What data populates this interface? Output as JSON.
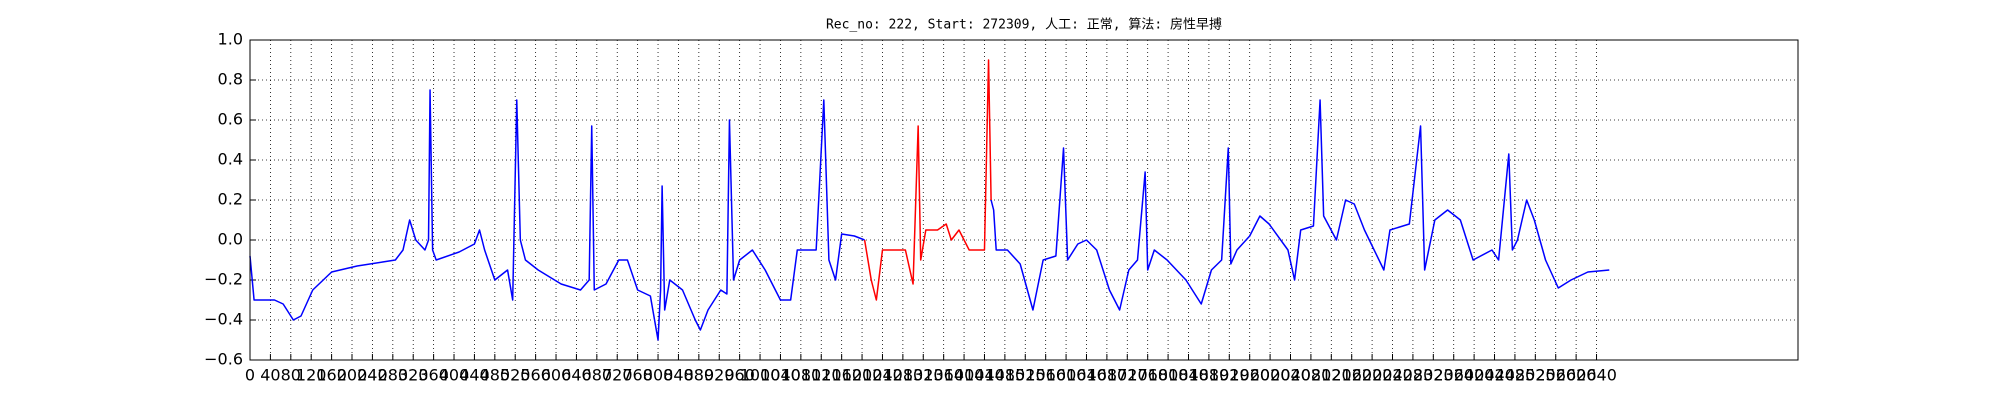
{
  "chart_data": {
    "type": "line",
    "title": "Rec_no: 222, Start: 272309, 人工: 正常, 算法: 房性早搏",
    "x": [
      0,
      8,
      48,
      65,
      85,
      100,
      123,
      160,
      210,
      260,
      285,
      300,
      313,
      325,
      343,
      350,
      353,
      358,
      365,
      410,
      440,
      450,
      460,
      480,
      505,
      515,
      523,
      530,
      540,
      565,
      610,
      648,
      665,
      670,
      675,
      698,
      723,
      740,
      760,
      785,
      800,
      805,
      808,
      813,
      823,
      848,
      873,
      883,
      898,
      923,
      935,
      940,
      948,
      960,
      985,
      1010,
      1040,
      1060,
      1073,
      1110,
      1125,
      1135,
      1148,
      1160,
      1185,
      1205,
      1218,
      1228,
      1240,
      1260,
      1285,
      1300,
      1310,
      1315,
      1325,
      1348,
      1365,
      1375,
      1390,
      1410,
      1430,
      1440,
      1448,
      1453,
      1458,
      1463,
      1485,
      1510,
      1535,
      1555,
      1580,
      1595,
      1603,
      1623,
      1640,
      1660,
      1685,
      1705,
      1723,
      1740,
      1755,
      1760,
      1773,
      1798,
      1835,
      1865,
      1885,
      1905,
      1918,
      1923,
      1935,
      1960,
      1980,
      1998,
      2035,
      2048,
      2060,
      2085,
      2098,
      2105,
      2130,
      2148,
      2165,
      2185,
      2223,
      2235,
      2273,
      2295,
      2303,
      2323,
      2348,
      2373,
      2398,
      2435,
      2448,
      2468,
      2475,
      2485,
      2503,
      2518,
      2540,
      2565,
      2590,
      2623,
      2665
    ],
    "series": [
      {
        "color": "#0000ff",
        "values": [
          -0.08,
          -0.3,
          -0.3,
          -0.32,
          -0.4,
          -0.38,
          -0.25,
          -0.16,
          -0.13,
          -0.11,
          -0.1,
          -0.05,
          0.1,
          0.0,
          -0.05,
          0.0,
          0.75,
          -0.05,
          -0.1,
          -0.06,
          -0.02,
          0.05,
          -0.05,
          -0.2,
          -0.15,
          -0.3,
          0.7,
          0.0,
          -0.1,
          -0.15,
          -0.22,
          -0.25,
          -0.2,
          0.57,
          -0.25,
          -0.22,
          -0.1,
          -0.1,
          -0.25,
          -0.28,
          -0.5,
          -0.25,
          0.27,
          -0.35,
          -0.2,
          -0.25,
          -0.4,
          -0.45,
          -0.35,
          -0.25,
          -0.27,
          0.6,
          -0.2,
          -0.1,
          -0.05,
          -0.15,
          -0.3,
          -0.3,
          -0.05,
          -0.05,
          0.7,
          -0.1,
          -0.2,
          0.03,
          0.02,
          0.0,
          null,
          null,
          null,
          null,
          null,
          null,
          null,
          null,
          null,
          null,
          null,
          null,
          null,
          null,
          null,
          null,
          null,
          0.2,
          0.15,
          -0.05,
          -0.05,
          -0.12,
          -0.35,
          -0.1,
          -0.08,
          0.46,
          -0.1,
          -0.02,
          0.0,
          -0.05,
          -0.25,
          -0.35,
          -0.15,
          -0.1,
          0.34,
          -0.15,
          -0.05,
          -0.1,
          -0.2,
          -0.32,
          -0.15,
          -0.1,
          0.46,
          -0.12,
          -0.05,
          0.02,
          0.12,
          0.08,
          -0.05,
          -0.2,
          0.05,
          0.07,
          0.7,
          0.12,
          0.0,
          0.2,
          0.18,
          0.05,
          -0.15,
          0.05,
          0.08,
          0.57,
          -0.15,
          0.1,
          0.15,
          0.1,
          -0.1,
          -0.05,
          -0.1,
          0.43,
          -0.05,
          0.0,
          0.2,
          0.1,
          -0.1,
          -0.24,
          -0.2,
          -0.16,
          -0.15
        ]
      },
      {
        "color": "#ff0000",
        "values": [
          null,
          null,
          null,
          null,
          null,
          null,
          null,
          null,
          null,
          null,
          null,
          null,
          null,
          null,
          null,
          null,
          null,
          null,
          null,
          null,
          null,
          null,
          null,
          null,
          null,
          null,
          null,
          null,
          null,
          null,
          null,
          null,
          null,
          null,
          null,
          null,
          null,
          null,
          null,
          null,
          null,
          null,
          null,
          null,
          null,
          null,
          null,
          null,
          null,
          null,
          null,
          null,
          null,
          null,
          null,
          null,
          null,
          null,
          null,
          null,
          null,
          null,
          null,
          null,
          null,
          0.0,
          -0.2,
          -0.3,
          -0.05,
          -0.05,
          -0.05,
          -0.22,
          0.57,
          -0.1,
          0.05,
          0.05,
          0.08,
          0.0,
          0.05,
          -0.05,
          -0.05,
          -0.05,
          0.9,
          0.2,
          null,
          null,
          null,
          null,
          null,
          null,
          null,
          null,
          null,
          null,
          null,
          null,
          null,
          null,
          null,
          null,
          null,
          null,
          null,
          null,
          null,
          null,
          null,
          null,
          null,
          null,
          null,
          null,
          null,
          null,
          null,
          null,
          null,
          null,
          null,
          null,
          null,
          null,
          null,
          null,
          null,
          null,
          null,
          null,
          null,
          null,
          null,
          null,
          null,
          null,
          null,
          null,
          null,
          null,
          null,
          null,
          null,
          null,
          null,
          null,
          null
        ]
      }
    ],
    "xlim": [
      0,
      3035
    ],
    "xticks": [
      0,
      40,
      80,
      120,
      160,
      200,
      240,
      280,
      320,
      360,
      400,
      440,
      480,
      520,
      560,
      600,
      640,
      680,
      720,
      760,
      800,
      840,
      880,
      920,
      960,
      1000,
      1040,
      1080,
      1120,
      1160,
      1200,
      1240,
      1280,
      1320,
      1360,
      1400,
      1440,
      1480,
      1520,
      1560,
      1600,
      1640,
      1680,
      1720,
      1760,
      1800,
      1840,
      1880,
      1920,
      1960,
      2000,
      2040,
      2080,
      2120,
      2160,
      2200,
      2240,
      2280,
      2320,
      2360,
      2400,
      2440,
      2480,
      2520,
      2560,
      2600,
      2640
    ],
    "ylim": [
      -0.6,
      1.0
    ],
    "yticks": [
      {
        "value": 1.0,
        "label": "1.0"
      },
      0.8,
      0.6,
      0.4,
      0.2,
      {
        "value": 0.0,
        "label": "0.0"
      },
      {
        "value": -0.2,
        "label": "−0.2"
      },
      {
        "value": -0.4,
        "label": "−0.4"
      },
      {
        "value": -0.6,
        "label": "−0.6"
      }
    ],
    "grid": true
  }
}
